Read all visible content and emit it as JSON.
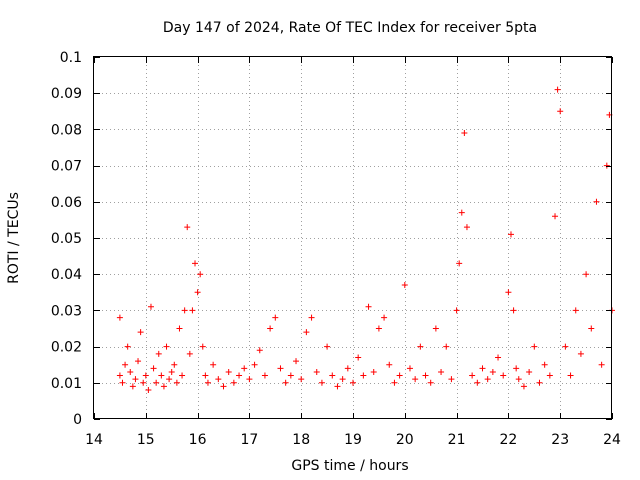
{
  "chart_data": {
    "type": "scatter",
    "title": "Day 147 of 2024, Rate Of TEC Index for receiver 5pta",
    "xlabel": "GPS time / hours",
    "ylabel": "ROTI / TECUs",
    "xlim": [
      14,
      24
    ],
    "ylim": [
      0,
      0.1
    ],
    "x_ticks": [
      14,
      15,
      16,
      17,
      18,
      19,
      20,
      21,
      22,
      23,
      24
    ],
    "x_tick_labels": [
      "14",
      "15",
      "16",
      "17",
      "18",
      "19",
      "20",
      "21",
      "22",
      "23",
      "24"
    ],
    "y_ticks": [
      0,
      0.01,
      0.02,
      0.03,
      0.04,
      0.05,
      0.06,
      0.07,
      0.08,
      0.09,
      0.1
    ],
    "y_tick_labels": [
      "0",
      "0.01",
      "0.02",
      "0.03",
      "0.04",
      "0.05",
      "0.06",
      "0.07",
      "0.08",
      "0.09",
      "0.1"
    ],
    "grid": true,
    "marker": "+",
    "color": "#ff0000",
    "series": [
      {
        "name": "ROTI",
        "x": [
          14.5,
          14.5,
          14.55,
          14.6,
          14.65,
          14.7,
          14.75,
          14.8,
          14.85,
          14.9,
          14.95,
          15.0,
          15.05,
          15.1,
          15.15,
          15.2,
          15.25,
          15.3,
          15.35,
          15.4,
          15.45,
          15.5,
          15.55,
          15.6,
          15.65,
          15.7,
          15.75,
          15.8,
          15.85,
          15.9,
          15.95,
          16.0,
          16.05,
          16.1,
          16.15,
          16.2,
          16.3,
          16.4,
          16.5,
          16.6,
          16.7,
          16.8,
          16.9,
          17.0,
          17.1,
          17.2,
          17.3,
          17.4,
          17.5,
          17.6,
          17.7,
          17.8,
          17.9,
          18.0,
          18.1,
          18.2,
          18.3,
          18.4,
          18.5,
          18.6,
          18.7,
          18.8,
          18.9,
          19.0,
          19.1,
          19.2,
          19.3,
          19.4,
          19.5,
          19.6,
          19.7,
          19.8,
          19.9,
          20.0,
          20.1,
          20.2,
          20.3,
          20.4,
          20.5,
          20.6,
          20.7,
          20.8,
          20.9,
          21.0,
          21.05,
          21.1,
          21.15,
          21.2,
          21.3,
          21.4,
          21.5,
          21.6,
          21.7,
          21.8,
          21.9,
          22.0,
          22.05,
          22.1,
          22.15,
          22.2,
          22.3,
          22.4,
          22.5,
          22.6,
          22.7,
          22.8,
          22.9,
          22.95,
          23.0,
          23.1,
          23.2,
          23.3,
          23.4,
          23.5,
          23.6,
          23.7,
          23.8,
          23.9,
          23.95,
          24.0
        ],
        "y": [
          0.012,
          0.028,
          0.01,
          0.015,
          0.02,
          0.013,
          0.009,
          0.011,
          0.016,
          0.024,
          0.01,
          0.012,
          0.008,
          0.031,
          0.014,
          0.01,
          0.018,
          0.012,
          0.009,
          0.02,
          0.011,
          0.013,
          0.015,
          0.01,
          0.025,
          0.012,
          0.03,
          0.053,
          0.018,
          0.03,
          0.043,
          0.035,
          0.04,
          0.02,
          0.012,
          0.01,
          0.015,
          0.011,
          0.009,
          0.013,
          0.01,
          0.012,
          0.014,
          0.011,
          0.015,
          0.019,
          0.012,
          0.025,
          0.028,
          0.014,
          0.01,
          0.012,
          0.016,
          0.011,
          0.024,
          0.028,
          0.013,
          0.01,
          0.02,
          0.012,
          0.009,
          0.011,
          0.014,
          0.01,
          0.017,
          0.012,
          0.031,
          0.013,
          0.025,
          0.028,
          0.015,
          0.01,
          0.012,
          0.037,
          0.014,
          0.011,
          0.02,
          0.012,
          0.01,
          0.025,
          0.013,
          0.02,
          0.011,
          0.03,
          0.043,
          0.057,
          0.079,
          0.053,
          0.012,
          0.01,
          0.014,
          0.011,
          0.013,
          0.017,
          0.012,
          0.035,
          0.051,
          0.03,
          0.014,
          0.011,
          0.009,
          0.013,
          0.02,
          0.01,
          0.015,
          0.012,
          0.056,
          0.091,
          0.085,
          0.02,
          0.012,
          0.03,
          0.018,
          0.04,
          0.025,
          0.06,
          0.015,
          0.07,
          0.084,
          0.03
        ]
      }
    ]
  }
}
